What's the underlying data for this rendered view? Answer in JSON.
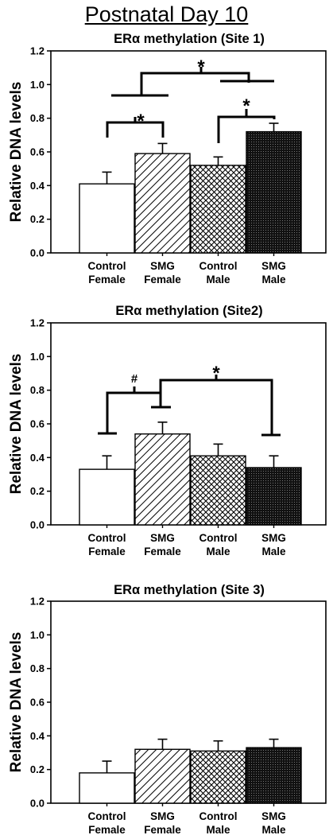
{
  "title": "Postnatal Day 10",
  "colors": {
    "axis": "#000000",
    "bar_fill_control_female": "#ffffff",
    "bar_fill_smg_male": "#000000"
  },
  "chart_data": [
    {
      "type": "bar",
      "title": "ERα methylation (Site 1)",
      "ylabel": "Relative DNA levels",
      "ylim": [
        0,
        1.2
      ],
      "yticks": [
        "0.0",
        "0.2",
        "0.4",
        "0.6",
        "0.8",
        "1.0",
        "1.2"
      ],
      "categories": [
        [
          "Control",
          "Female"
        ],
        [
          "SMG",
          "Female"
        ],
        [
          "Control",
          "Male"
        ],
        [
          "SMG",
          "Male"
        ]
      ],
      "patterns": [
        "open",
        "diagonal-hatch",
        "crosshatch",
        "dense-dark"
      ],
      "values": [
        0.41,
        0.59,
        0.52,
        0.72
      ],
      "errors": [
        0.07,
        0.06,
        0.05,
        0.05
      ],
      "annotations": [
        {
          "label": "*",
          "between": [
            "Control Female",
            "SMG Female"
          ]
        },
        {
          "label": "*",
          "between": [
            "Control Male",
            "SMG Male"
          ]
        },
        {
          "label": "*",
          "between": [
            "Female",
            "Male"
          ]
        }
      ]
    },
    {
      "type": "bar",
      "title": "ERα methylation (Site2)",
      "ylabel": "Relative DNA levels",
      "ylim": [
        0,
        1.2
      ],
      "yticks": [
        "0.0",
        "0.2",
        "0.4",
        "0.6",
        "0.8",
        "1.0",
        "1.2"
      ],
      "categories": [
        [
          "Control",
          "Female"
        ],
        [
          "SMG",
          "Female"
        ],
        [
          "Control",
          "Male"
        ],
        [
          "SMG",
          "Male"
        ]
      ],
      "patterns": [
        "open",
        "diagonal-hatch",
        "crosshatch",
        "dense-dark"
      ],
      "values": [
        0.33,
        0.54,
        0.41,
        0.34
      ],
      "errors": [
        0.08,
        0.07,
        0.07,
        0.07
      ],
      "annotations": [
        {
          "label": "#",
          "between": [
            "Control Female",
            "SMG Female"
          ]
        },
        {
          "label": "*",
          "between": [
            "SMG Female",
            "SMG Male"
          ]
        }
      ]
    },
    {
      "type": "bar",
      "title": "ERα methylation (Site 3)",
      "ylabel": "Relative DNA levels",
      "ylim": [
        0,
        1.2
      ],
      "yticks": [
        "0.0",
        "0.2",
        "0.4",
        "0.6",
        "0.8",
        "1.0",
        "1.2"
      ],
      "categories": [
        [
          "Control",
          "Female"
        ],
        [
          "SMG",
          "Female"
        ],
        [
          "Control",
          "Male"
        ],
        [
          "SMG",
          "Male"
        ]
      ],
      "patterns": [
        "open",
        "diagonal-hatch",
        "crosshatch",
        "dense-dark"
      ],
      "values": [
        0.18,
        0.32,
        0.31,
        0.33
      ],
      "errors": [
        0.07,
        0.06,
        0.06,
        0.05
      ],
      "annotations": []
    }
  ]
}
